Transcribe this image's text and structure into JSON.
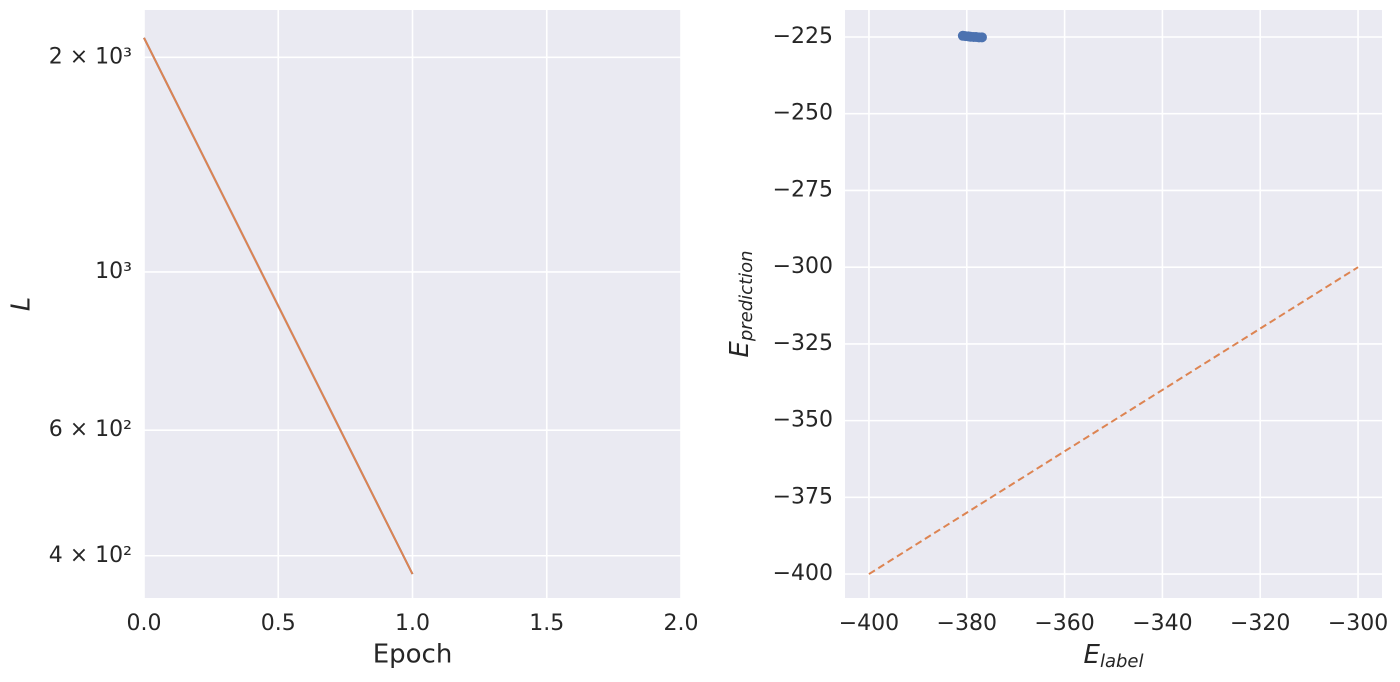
{
  "chart_data": [
    {
      "type": "line",
      "xlabel": "Epoch",
      "ylabel": "L",
      "x": [
        0,
        1
      ],
      "series": [
        {
          "color": "#4c72b0",
          "values": [
            2130,
            377
          ]
        },
        {
          "color": "#dd8452",
          "values": [
            2130,
            377
          ]
        }
      ],
      "xlim": [
        0,
        2
      ],
      "xticks": [
        {
          "value": 0,
          "label": "0.0"
        },
        0.5,
        {
          "value": 1,
          "label": "1.0"
        },
        1.5,
        {
          "value": 2,
          "label": "2.0"
        }
      ],
      "ylim": [
        349,
        2330
      ],
      "yscale": "log",
      "yticks": [
        {
          "value": 400,
          "label": "4 × 10²"
        },
        {
          "value": 600,
          "label": "6 × 10²"
        },
        {
          "value": 1000,
          "label": "10³"
        },
        {
          "value": 2000,
          "label": "2 × 10³"
        }
      ],
      "grid": true
    },
    {
      "type": "scatter",
      "xlabel": {
        "text": "E",
        "sub": "label"
      },
      "ylabel": {
        "text": "E",
        "sub": "prediction"
      },
      "series": [
        {
          "type": "scatter",
          "color": "#4c72b0",
          "x": [
            -380.8,
            -380.3,
            -379.7,
            -379.2,
            -378.6,
            -378.1,
            -377.5,
            -376.9
          ],
          "values": [
            -224.6,
            -224.7,
            -224.8,
            -224.9,
            -225.0,
            -225.0,
            -225.1,
            -225.1
          ]
        },
        {
          "type": "line",
          "color": "#dd8452",
          "linestyle": "dashed",
          "x": [
            -400,
            -300
          ],
          "values": [
            -400,
            -300
          ]
        }
      ],
      "xlim": [
        -404.9,
        -295.1
      ],
      "xticks": [
        {
          "value": -400,
          "label": "−400"
        },
        {
          "value": -380,
          "label": "−380"
        },
        {
          "value": -360,
          "label": "−360"
        },
        {
          "value": -340,
          "label": "−340"
        },
        {
          "value": -320,
          "label": "−320"
        },
        {
          "value": -300,
          "label": "−300"
        }
      ],
      "ylim": [
        -407.8,
        -216.2
      ],
      "yticks": [
        {
          "value": -400,
          "label": "−400"
        },
        {
          "value": -375,
          "label": "−375"
        },
        {
          "value": -350,
          "label": "−350"
        },
        {
          "value": -325,
          "label": "−325"
        },
        {
          "value": -300,
          "label": "−300"
        },
        {
          "value": -275,
          "label": "−275"
        },
        {
          "value": -250,
          "label": "−250"
        },
        {
          "value": -225,
          "label": "−225"
        }
      ],
      "grid": true
    }
  ]
}
